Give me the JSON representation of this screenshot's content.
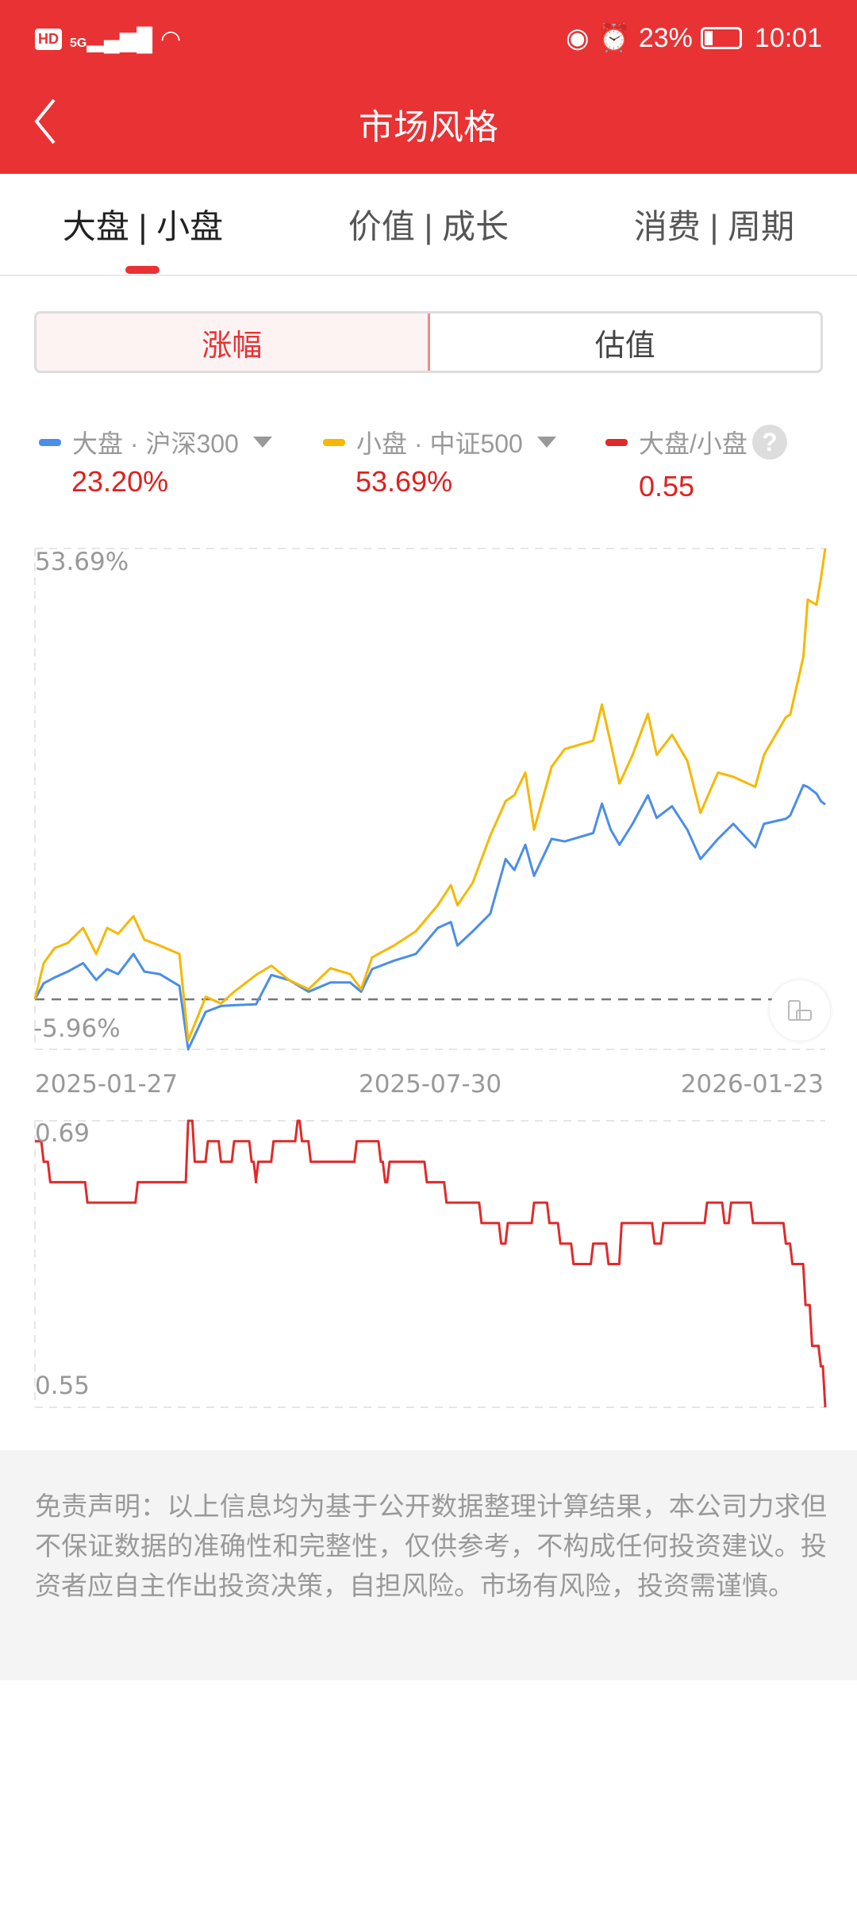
{
  "status_bar": {
    "left": "HD 5G",
    "battery": "23%",
    "time": "10:01",
    "icons": [
      "hd-icon",
      "signal-icon",
      "wifi-icon",
      "eye-icon",
      "alarm-icon",
      "battery-icon"
    ]
  },
  "header": {
    "title": "市场风格",
    "back_icon": "chevron-left-icon"
  },
  "tabs": [
    {
      "label": "大盘 | 小盘",
      "active": true
    },
    {
      "label": "价值 | 成长",
      "active": false
    },
    {
      "label": "消费 | 周期",
      "active": false
    }
  ],
  "segment": [
    {
      "label": "涨幅",
      "active": true
    },
    {
      "label": "估值",
      "active": false
    }
  ],
  "legend": [
    {
      "label": "大盘 · 沪深300",
      "value": "23.20%",
      "color": "#4a8ee8",
      "dropdown": true
    },
    {
      "label": "小盘 · 中证500",
      "value": "53.69%",
      "color": "#f5b800",
      "dropdown": true
    },
    {
      "label": "大盘/小盘",
      "value": "0.55",
      "color": "#e02a2a",
      "help": true
    }
  ],
  "colors": {
    "accent": "#e83234",
    "value_red": "#e02020"
  },
  "chart_data": [
    {
      "type": "line",
      "ymax_label": "53.69%",
      "ymin_label": "-5.96%",
      "ylim": [
        -5.96,
        53.69
      ],
      "baseline": 0,
      "x_tick_labels": [
        "2025-01-27",
        "2025-07-30",
        "2026-01-23"
      ],
      "xlim": [
        "2025-01-27",
        "2026-01-23"
      ],
      "x": [
        "2025-01-27",
        "2025-01-31",
        "2025-02-05",
        "2025-02-11",
        "2025-02-18",
        "2025-02-24",
        "2025-03-01",
        "2025-03-06",
        "2025-03-13",
        "2025-03-18",
        "2025-03-25",
        "2025-04-03",
        "2025-04-07",
        "2025-04-15",
        "2025-04-22",
        "2025-04-28",
        "2025-05-08",
        "2025-05-15",
        "2025-05-23",
        "2025-06-01",
        "2025-06-11",
        "2025-06-20",
        "2025-06-25",
        "2025-06-30",
        "2025-07-10",
        "2025-07-20",
        "2025-07-30",
        "2025-08-05",
        "2025-08-08",
        "2025-08-15",
        "2025-08-23",
        "2025-08-30",
        "2025-09-03",
        "2025-09-08",
        "2025-09-12",
        "2025-09-20",
        "2025-09-26",
        "2025-10-09",
        "2025-10-13",
        "2025-10-17",
        "2025-10-21",
        "2025-10-27",
        "2025-11-03",
        "2025-11-07",
        "2025-11-14",
        "2025-11-21",
        "2025-11-27",
        "2025-12-05",
        "2025-12-12",
        "2025-12-22",
        "2025-12-26",
        "2026-01-05",
        "2026-01-07",
        "2026-01-13",
        "2026-01-15",
        "2026-01-19",
        "2026-01-21",
        "2026-01-23"
      ],
      "series": [
        {
          "name": "大盘 · 沪深300",
          "color": "#4a8ee8",
          "values": [
            0,
            1.9,
            2.6,
            3.3,
            4.3,
            2.3,
            3.6,
            3.0,
            5.4,
            3.3,
            3.0,
            1.6,
            -5.96,
            -1.5,
            -0.8,
            -0.7,
            -0.6,
            2.9,
            2.3,
            0.9,
            2.0,
            2.0,
            0.9,
            3.6,
            4.6,
            5.4,
            8.5,
            9.2,
            6.4,
            8.1,
            10.2,
            16.7,
            15.4,
            18.4,
            14.7,
            19.1,
            18.8,
            19.8,
            23.3,
            20.2,
            18.4,
            20.9,
            24.3,
            21.6,
            23.0,
            20.2,
            16.7,
            19.1,
            20.9,
            18.1,
            20.9,
            21.5,
            21.9,
            25.5,
            25.3,
            24.5,
            23.6,
            23.2
          ]
        },
        {
          "name": "小盘 · 中证500",
          "color": "#f5b800",
          "values": [
            0,
            4.3,
            6.1,
            6.7,
            8.5,
            5.4,
            8.5,
            7.8,
            9.9,
            7.1,
            6.4,
            5.4,
            -4.9,
            0.3,
            -0.5,
            0.9,
            2.9,
            4.0,
            2.3,
            1.2,
            3.7,
            3.0,
            1.2,
            5.0,
            6.4,
            8.1,
            11.2,
            13.6,
            11.2,
            13.9,
            19.5,
            23.6,
            24.3,
            27.0,
            20.2,
            27.7,
            29.8,
            30.8,
            35.1,
            30.5,
            25.7,
            29.1,
            34.0,
            29.1,
            31.5,
            28.4,
            22.2,
            27.0,
            26.5,
            25.3,
            29.1,
            33.6,
            33.9,
            40.8,
            47.6,
            47.0,
            50.1,
            53.69
          ]
        }
      ]
    },
    {
      "type": "line",
      "ymax_label": "0.69",
      "ymin_label": "0.55",
      "ylim": [
        0.55,
        0.69
      ],
      "xlim": [
        "2025-01-27",
        "2026-01-23"
      ],
      "series": [
        {
          "name": "大盘/小盘",
          "color": "#e02a2a",
          "step": true,
          "x": [
            "2025-01-27",
            "2025-01-31",
            "2025-02-03",
            "2025-02-19",
            "2025-02-20",
            "2025-03-13",
            "2025-03-15",
            "2025-03-31",
            "2025-04-07",
            "2025-04-10",
            "2025-04-15",
            "2025-04-16",
            "2025-04-21",
            "2025-04-22",
            "2025-04-28",
            "2025-05-06",
            "2025-05-08",
            "2025-05-09",
            "2025-05-15",
            "2025-05-16",
            "2025-05-24",
            "2025-05-27",
            "2025-05-29",
            "2025-06-01",
            "2025-06-02",
            "2025-06-22",
            "2025-06-23",
            "2025-07-01",
            "2025-07-04",
            "2025-07-06",
            "2025-07-08",
            "2025-07-23",
            "2025-07-25",
            "2025-08-02",
            "2025-08-03",
            "2025-08-17",
            "2025-08-19",
            "2025-08-24",
            "2025-08-28",
            "2025-08-31",
            "2025-09-10",
            "2025-09-12",
            "2025-09-16",
            "2025-09-19",
            "2025-09-22",
            "2025-09-24",
            "2025-09-27",
            "2025-09-30",
            "2025-10-09",
            "2025-10-15",
            "2025-10-16",
            "2025-10-20",
            "2025-10-22",
            "2025-11-05",
            "2025-11-06",
            "2025-11-10",
            "2025-11-27",
            "2025-11-30",
            "2025-12-06",
            "2025-12-08",
            "2025-12-11",
            "2025-12-20",
            "2025-12-21",
            "2026-01-03",
            "2026-01-05",
            "2026-01-08",
            "2026-01-12",
            "2026-01-14",
            "2026-01-17",
            "2026-01-20",
            "2026-01-21",
            "2026-01-22",
            "2026-01-23"
          ],
          "values": [
            0.68,
            0.67,
            0.66,
            0.66,
            0.65,
            0.65,
            0.66,
            0.66,
            0.69,
            0.67,
            0.67,
            0.68,
            0.68,
            0.67,
            0.68,
            0.67,
            0.66,
            0.67,
            0.67,
            0.68,
            0.68,
            0.69,
            0.68,
            0.68,
            0.67,
            0.67,
            0.68,
            0.68,
            0.67,
            0.66,
            0.67,
            0.67,
            0.66,
            0.66,
            0.65,
            0.65,
            0.64,
            0.64,
            0.63,
            0.64,
            0.64,
            0.65,
            0.65,
            0.64,
            0.64,
            0.63,
            0.63,
            0.62,
            0.63,
            0.63,
            0.62,
            0.62,
            0.64,
            0.64,
            0.63,
            0.64,
            0.64,
            0.65,
            0.65,
            0.64,
            0.65,
            0.65,
            0.64,
            0.64,
            0.63,
            0.62,
            0.62,
            0.6,
            0.58,
            0.58,
            0.57,
            0.57,
            0.55
          ]
        }
      ]
    }
  ],
  "disclaimer": "免责声明：以上信息均为基于公开数据整理计算结果，本公司力求但不保证数据的准确性和完整性，仅供参考，不构成任何投资建议。投资者应自主作出投资决策，自担风险。市场有风险，投资需谨慎。"
}
